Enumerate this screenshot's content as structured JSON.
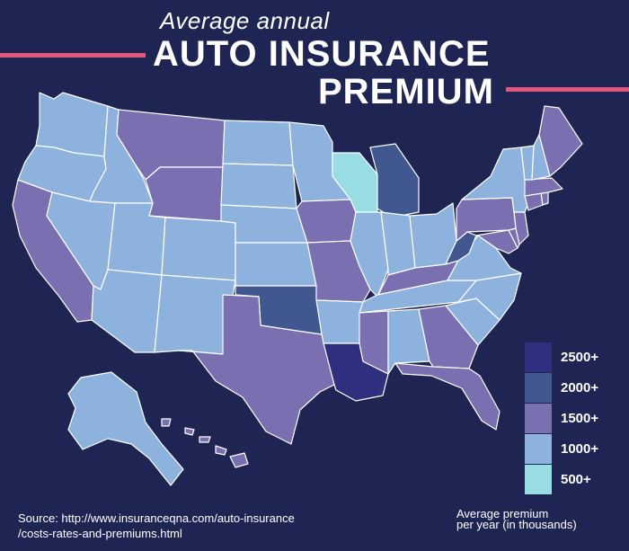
{
  "header": {
    "subtitle": "Average annual",
    "title_line1": "AUTO INSURANCE",
    "title_line2": "PREMIUM"
  },
  "colors": {
    "background": "#1f2552",
    "accent_rule": "#e2587a",
    "tier_2500": "#2e2f7e",
    "tier_2000": "#40578f",
    "tier_1500": "#7a6fb1",
    "tier_1000": "#8eb2de",
    "tier_500": "#98dde3"
  },
  "legend": {
    "items": [
      {
        "label": "2500+",
        "tier": "tier_2500"
      },
      {
        "label": "2000+",
        "tier": "tier_2000"
      },
      {
        "label": "1500+",
        "tier": "tier_1500"
      },
      {
        "label": "1000+",
        "tier": "tier_1000"
      },
      {
        "label": "500+",
        "tier": "tier_500"
      }
    ],
    "caption_line1": "Average premium",
    "caption_line2": "per year (in thousands)"
  },
  "source": {
    "line1": "Source: http://www.insuranceqna.com/auto-insurance",
    "line2": "/costs-rates-and-premiums.html"
  },
  "map_data": {
    "type": "choropleth",
    "states": [
      {
        "id": "WA",
        "tier": "tier_1000"
      },
      {
        "id": "OR",
        "tier": "tier_1000"
      },
      {
        "id": "CA",
        "tier": "tier_1500"
      },
      {
        "id": "ID",
        "tier": "tier_1000"
      },
      {
        "id": "NV",
        "tier": "tier_1000"
      },
      {
        "id": "MT",
        "tier": "tier_1500"
      },
      {
        "id": "WY",
        "tier": "tier_1500"
      },
      {
        "id": "UT",
        "tier": "tier_1000"
      },
      {
        "id": "AZ",
        "tier": "tier_1000"
      },
      {
        "id": "CO",
        "tier": "tier_1000"
      },
      {
        "id": "NM",
        "tier": "tier_1000"
      },
      {
        "id": "ND",
        "tier": "tier_1000"
      },
      {
        "id": "SD",
        "tier": "tier_1000"
      },
      {
        "id": "NE",
        "tier": "tier_1000"
      },
      {
        "id": "KS",
        "tier": "tier_1000"
      },
      {
        "id": "OK",
        "tier": "tier_2000"
      },
      {
        "id": "TX",
        "tier": "tier_1500"
      },
      {
        "id": "MN",
        "tier": "tier_1000"
      },
      {
        "id": "IA",
        "tier": "tier_1500"
      },
      {
        "id": "MO",
        "tier": "tier_1500"
      },
      {
        "id": "AR",
        "tier": "tier_1000"
      },
      {
        "id": "LA",
        "tier": "tier_2500"
      },
      {
        "id": "WI",
        "tier": "tier_500"
      },
      {
        "id": "IL",
        "tier": "tier_1000"
      },
      {
        "id": "MI",
        "tier": "tier_2000"
      },
      {
        "id": "IN",
        "tier": "tier_1000"
      },
      {
        "id": "OH",
        "tier": "tier_1000"
      },
      {
        "id": "KY",
        "tier": "tier_1500"
      },
      {
        "id": "TN",
        "tier": "tier_1000"
      },
      {
        "id": "MS",
        "tier": "tier_1500"
      },
      {
        "id": "AL",
        "tier": "tier_1000"
      },
      {
        "id": "GA",
        "tier": "tier_1500"
      },
      {
        "id": "FL",
        "tier": "tier_1500"
      },
      {
        "id": "SC",
        "tier": "tier_1000"
      },
      {
        "id": "NC",
        "tier": "tier_1000"
      },
      {
        "id": "VA",
        "tier": "tier_1000"
      },
      {
        "id": "WV",
        "tier": "tier_2000"
      },
      {
        "id": "MD",
        "tier": "tier_1500"
      },
      {
        "id": "DE",
        "tier": "tier_1500"
      },
      {
        "id": "NJ",
        "tier": "tier_1500"
      },
      {
        "id": "PA",
        "tier": "tier_1500"
      },
      {
        "id": "NY",
        "tier": "tier_1000"
      },
      {
        "id": "CT",
        "tier": "tier_1500"
      },
      {
        "id": "RI",
        "tier": "tier_1500"
      },
      {
        "id": "MA",
        "tier": "tier_1500"
      },
      {
        "id": "VT",
        "tier": "tier_1000"
      },
      {
        "id": "NH",
        "tier": "tier_1000"
      },
      {
        "id": "ME",
        "tier": "tier_1500"
      },
      {
        "id": "AK",
        "tier": "tier_1000"
      },
      {
        "id": "HI",
        "tier": "tier_1500"
      }
    ]
  }
}
